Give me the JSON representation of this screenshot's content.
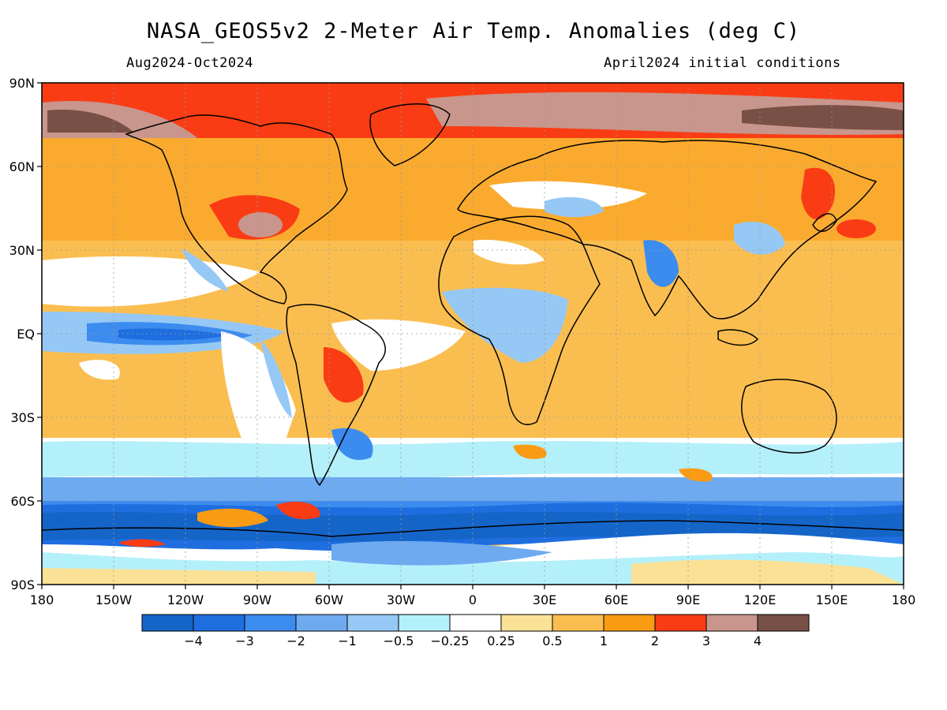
{
  "title": "NASA_GEOS5v2 2-Meter Air Temp. Anomalies (deg C)",
  "period": "Aug2024-Oct2024",
  "init": "April2024 initial conditions",
  "lat_labels": [
    "90N",
    "60N",
    "30N",
    "EQ",
    "30S",
    "60S",
    "90S"
  ],
  "lon_labels": [
    "180",
    "150W",
    "120W",
    "90W",
    "60W",
    "30W",
    "0",
    "30E",
    "60E",
    "90E",
    "120E",
    "150E",
    "180"
  ],
  "colorbar": {
    "colors": [
      "#1565c8",
      "#1e6ee0",
      "#3c8cf0",
      "#6eaaf0",
      "#96c8f5",
      "#b4f0fa",
      "#ffffff",
      "#fae196",
      "#fabe50",
      "#fa9b14",
      "#fa3c14",
      "#c8968c",
      "#785046"
    ],
    "labels": [
      "-4",
      "-3",
      "-2",
      "-1",
      "-0.5",
      "-0.25",
      "0.25",
      "0.5",
      "1",
      "2",
      "3",
      "4"
    ]
  }
}
